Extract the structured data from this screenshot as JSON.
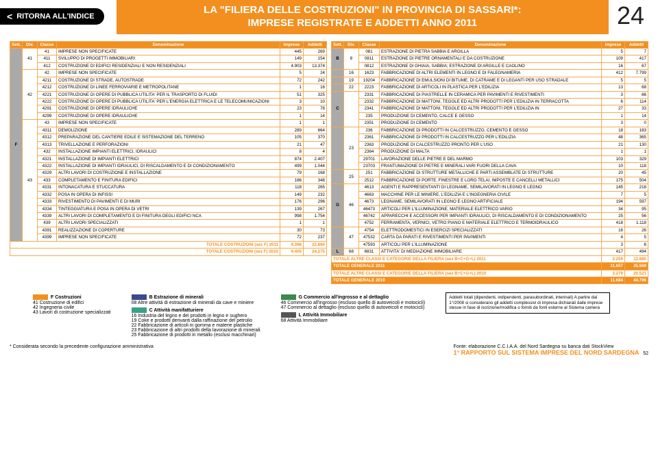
{
  "colors": {
    "accent": "#f38f1e",
    "accent_light": "#f5a94e",
    "black": "#000000",
    "gray": "#aaaaaa",
    "text": "#222222",
    "swatch_blue": "#3a4a8a",
    "swatch_teal": "#3aa08a",
    "swatch_green": "#3a8a4a"
  },
  "header": {
    "back_label": "RITORNA ALL'INDICE",
    "title_line1": "LA \"FILIERA DELLE COSTRUZIONI\" IN PROVINCIA DI SASSARI*:",
    "title_line2": "IMPRESE REGISTRATE E ADDETTI ANNO 2011",
    "page_number": "24"
  },
  "table_headers": {
    "sett": "Sett.",
    "div": "Div.",
    "classe": "Classe",
    "denom": "Denominazione",
    "imprese": "Imprese",
    "addetti": "Addetti"
  },
  "left_table": {
    "sett": "F",
    "groups": [
      {
        "div": "41",
        "rows": [
          {
            "classe": "41",
            "denom": "IMPRESE NON SPECIFICATE",
            "imp": "445",
            "add": "269"
          },
          {
            "classe": "411",
            "denom": "SVILUPPO DI PROGETTI IMMOBILIARI",
            "imp": "149",
            "add": "154"
          },
          {
            "classe": "412",
            "denom": "COSTRUZIONE DI EDIFICI RESIDENZIALI E NON RESIDENZIALI",
            "imp": "4.903",
            "add": "13.374"
          }
        ]
      },
      {
        "div": "42",
        "rows": [
          {
            "classe": "42",
            "denom": "IMPRESE NON SPECIFICATE",
            "imp": "5",
            "add": "24"
          },
          {
            "classe": "4211",
            "denom": "COSTRUZIONE DI STRADE, AUTOSTRADE",
            "imp": "72",
            "add": "242"
          },
          {
            "classe": "4212",
            "denom": "COSTRUZIONE DI LINEE FERROVIARIE E METROPOLITANE",
            "imp": "1",
            "add": "16"
          },
          {
            "classe": "4221",
            "denom": "COSTRUZIONE DI OPERE DI PUBBLICA UTILITA' PER IL TRASPORTO DI FLUIDI",
            "imp": "51",
            "add": "325"
          },
          {
            "classe": "4222",
            "denom": "COSTRUZIONE DI OPERE DI PUBBLICA UTILITA' PER L'ENERGIA ELETTRICA E LE TELECOMUNICAZIONI",
            "imp": "3",
            "add": "10"
          },
          {
            "classe": "4291",
            "denom": "COSTRUZIONE DI OPERE IDRAULICHE",
            "imp": "23",
            "add": "78"
          },
          {
            "classe": "4299",
            "denom": "COSTRUZIONE DI OPERE IDRAULICHE",
            "imp": "1",
            "add": "14"
          }
        ]
      },
      {
        "div": "43",
        "rows": [
          {
            "classe": "43",
            "denom": "IMPRESE NON SPECIFICATE",
            "imp": "1",
            "add": "1"
          },
          {
            "classe": "4311",
            "denom": "DEMOLIZIONE",
            "imp": "289",
            "add": "664"
          },
          {
            "classe": "4312",
            "denom": "PREPARAZIONE DEL CANTIERE EDILE E SISTEMAZIONE DEL TERRENO",
            "imp": "105",
            "add": "370"
          },
          {
            "classe": "4313",
            "denom": "TRIVELLAZIONE E PERFORAZIONI",
            "imp": "21",
            "add": "47"
          },
          {
            "classe": "432",
            "denom": "INSTALLAZIONE IMPIANTI ELETTRICI, IDRAULICI",
            "imp": "8",
            "add": "4"
          },
          {
            "classe": "4321",
            "denom": "INSTALLAZIONE DI IMPIANTI ELETTRICI",
            "imp": "874",
            "add": "2.407"
          },
          {
            "classe": "4322",
            "denom": "INSTALLAZIONE DI IMPIANTI IDRAULICI, DI RISCALDAMENTO E DI CONDIZIONAMENTO",
            "imp": "499",
            "add": "1.044"
          },
          {
            "classe": "4329",
            "denom": "ALTRI LAVORI DI COSTRUZIONE E INSTALLAZIONE",
            "imp": "79",
            "add": "168"
          },
          {
            "classe": "433",
            "denom": "COMPLETAMENTO E FINITURA EDIFICI",
            "imp": "186",
            "add": "348"
          },
          {
            "classe": "4331",
            "denom": "INTONACATURA E STUCCATURA",
            "imp": "118",
            "add": "265"
          },
          {
            "classe": "4332",
            "denom": "POSA IN OPERA DI INFISSI",
            "imp": "149",
            "add": "232"
          },
          {
            "classe": "4333",
            "denom": "RIVESTIMENTO DI PAVIMENTI E DI MURI",
            "imp": "176",
            "add": "296"
          },
          {
            "classe": "4334",
            "denom": "TINTEGGIATURA E POSA IN OPERA DI VETRI",
            "imp": "139",
            "add": "267"
          },
          {
            "classe": "4339",
            "denom": "ALTRI LAVORI DI COMPLETAMENTO E DI FINITURA DEGLI EDIFICI NCA",
            "imp": "998",
            "add": "1.754"
          },
          {
            "classe": "439",
            "denom": "ALTRI LAVORI SPECIALIZZATI",
            "imp": "1",
            "add": "1"
          },
          {
            "classe": "4391",
            "denom": "REALIZZAZIONE DI COPERTURE",
            "imp": "30",
            "add": "73"
          },
          {
            "classe": "4399",
            "denom": "IMPRESE NON SPECIFICATE",
            "imp": "72",
            "add": "237"
          }
        ]
      }
    ],
    "totals": [
      {
        "label": "TOTALE COSTRUZIONI (sez F) 2011",
        "imp": "9.398",
        "add": "22.684"
      },
      {
        "label": "TOTALE COSTRUZIONI (sez F) 2010",
        "imp": "9.405",
        "add": "24.275"
      }
    ]
  },
  "right_table": {
    "groups": [
      {
        "sett": "B",
        "div": "8",
        "rows": [
          {
            "classe": "081",
            "denom": "ESTRAZIONE DI PIETRA SABBIA E ARGILLA",
            "imp": "5",
            "add": "7"
          },
          {
            "classe": "0811",
            "denom": "ESTRAZIONE DI PIETRE ORNAMENTALI E DA COSTRUZIONE",
            "imp": "109",
            "add": "417"
          },
          {
            "classe": "0812",
            "denom": "ESTRAZIONE DI GHIAIA, SABBIA; ESTRAZIONE DI ARGILLE E CAOLINO",
            "imp": "16",
            "add": "67"
          }
        ]
      },
      {
        "sett": "",
        "div": "16",
        "rows": [
          {
            "classe": "1623",
            "denom": "FABBRICAZIONE DI ALTRI ELEMENTI IN LEGNO E DI FALEGNAMERIA",
            "imp": "412",
            "add": "7.799"
          }
        ]
      },
      {
        "sett": "",
        "div": "19",
        "rows": [
          {
            "classe": "19204",
            "denom": "FABBRICAZIONE DI EMULSIONI DI BITUME, DI CATRAME E DI LEGANTI PER USO STRADALE",
            "imp": "5",
            "add": "5"
          }
        ]
      },
      {
        "sett": "",
        "div": "22",
        "rows": [
          {
            "classe": "2223",
            "denom": "FABBRICAZIONE DI ARTICOLI IN PLASTICA PER L'EDILIZIA",
            "imp": "13",
            "add": "68"
          }
        ]
      },
      {
        "sett": "C",
        "div": "",
        "rows": [
          {
            "classe": "2331",
            "denom": "FABBRICAZIONE DI PIASTRELLE IN CERAMICA PER PAVIMENTI E RIVESTIMENTI",
            "imp": "3",
            "add": "66"
          },
          {
            "classe": "2332",
            "denom": "FABBRICAZIONE DI MATTONI, TEGOLE ED ALTRI PRODOTTI PER L'EDILIZIA IN TERRACOTTA",
            "imp": "6",
            "add": "114"
          },
          {
            "classe": "2341",
            "denom": "FABBRICAZIONE DI MATTONI, TEGOLE ED ALTRI PRODOTTI PER L'EDILIZIA IN",
            "imp": "27",
            "add": "33"
          },
          {
            "classe": "235",
            "denom": "PRODUZIONE DI CEMENTO, CALCE E GESSO",
            "imp": "1",
            "add": "14"
          },
          {
            "classe": "2351",
            "denom": "PRODUZIONE DI CEMENTO",
            "imp": "3",
            "add": "0"
          }
        ]
      },
      {
        "sett": "",
        "div": "23",
        "rows": [
          {
            "classe": "236",
            "denom": "FABBRICAZIONE DI PRODOTTI IN CALCESTRUZZO, CEMENTO E GESSO",
            "imp": "18",
            "add": "183"
          },
          {
            "classe": "2361",
            "denom": "FABBRICAZIONE DI PRODOTTI IN CALCESTRUZZO PER L'EDILIZIA",
            "imp": "48",
            "add": "365"
          },
          {
            "classe": "2363",
            "denom": "PRODUZIONE DI CALCESTRUZZO PRONTO PER L'USO",
            "imp": "21",
            "add": "130"
          },
          {
            "classe": "2364",
            "denom": "PRODUZIONE DI MALTA",
            "imp": "1",
            "add": "1"
          },
          {
            "classe": "29701",
            "denom": "LAVORAZIONE DELLE PIETRE E DEL MARMO",
            "imp": "103",
            "add": "329"
          },
          {
            "classe": "23703",
            "denom": "FRANTUMAZIONE DI PIETRE E MINERALI VARI FUORI DELLA CAVA",
            "imp": "10",
            "add": "118"
          }
        ]
      },
      {
        "sett": "",
        "div": "25",
        "rows": [
          {
            "classe": "251",
            "denom": "FABBRICAZIONE DI STRUTTURE METALLICHE E PARTI ASSEMBLATE DI STRUTTURE",
            "imp": "20",
            "add": "45"
          },
          {
            "classe": "2512",
            "denom": "FABBRICAZIONE DI PORTE, FINESTRE E LORO TELAI, IMPOSTE E CANCELLI METALLICI",
            "imp": "175",
            "add": "504"
          }
        ]
      },
      {
        "sett": "G",
        "div": "46",
        "rows": [
          {
            "classe": "4613",
            "denom": "AGENTI E RAPPRESENTANTI DI LEGNAME, SEMILAVORATI IN LEGNO E LEGNO",
            "imp": "145",
            "add": "218"
          },
          {
            "classe": "4663",
            "denom": "MACCHINE PER LE MINIERE, L'EDILIZIA E L'INGEGNERIA CIVILE",
            "imp": "7",
            "add": "5"
          },
          {
            "classe": "4673",
            "denom": "LEGNAME, SEMILAVORATI IN LEGNO E LEGNO ARTIFICIALE",
            "imp": "194",
            "add": "597"
          },
          {
            "classe": "46473",
            "denom": "ARTICOLI PER L'ILLUMINAZIONE; MATERIALE ELETTRICO VARIO",
            "imp": "34",
            "add": "95"
          },
          {
            "classe": "46742",
            "denom": "APPARECCHI E ACCESSORI PER IMPIANTI IDRAULICI, DI RISCALDAMENTO E DI CONDIZIONAMENTO",
            "imp": "25",
            "add": "56"
          },
          {
            "classe": "4752",
            "denom": "FERRAMENTA, VERNICI, VETRO PIANO E MATERIALE ELETTRICO E TERMOIDRAULICO",
            "imp": "418",
            "add": "1.118"
          }
        ]
      },
      {
        "sett": "",
        "div": "47",
        "rows": [
          {
            "classe": "4754",
            "denom": "ELETTRODOMESTICI IN ESERCIZI SPECIALIZZATI",
            "imp": "16",
            "add": "26"
          },
          {
            "classe": "47532",
            "denom": "CARTA DA PARATI E RIVESTIMENTI PER PAVIMENTI",
            "imp": "4",
            "add": "5"
          },
          {
            "classe": "47593",
            "denom": "ARTICOLI PER L'ILLUMINAZIONE",
            "imp": "3",
            "add": "6"
          }
        ]
      },
      {
        "sett": "L",
        "div": "68",
        "rows": [
          {
            "classe": "6831",
            "denom": "ATTIVITA' DI MEDIAZIONE IMMOBILIARE",
            "imp": "417",
            "add": "494"
          }
        ]
      }
    ],
    "totals": [
      {
        "label": "TOTALE ALTRE CLASSI E CATEGORIE DELLA FILIERA (sez B+C+G+L) 2011",
        "imp": "2.259",
        "add": "12.885",
        "cls": "total"
      },
      {
        "label": "TOTALE GENERALE 2011",
        "imp": "11.657",
        "add": "35.569",
        "cls": "grand"
      },
      {
        "label": "TOTALE ALTRE CLASSI E CATEGORIE DELLA FILIERA (sez B+C+G+L) 2010",
        "imp": "2.279",
        "add": "20.521",
        "cls": "total"
      },
      {
        "label": "TOTALE GENERALE 2010",
        "imp": "11.684",
        "add": "44.796",
        "cls": "grand"
      }
    ]
  },
  "legend": {
    "col1": {
      "swatch": "#f38f1e",
      "heading": "F Costruzioni",
      "items": [
        "41 Costruzione di edifici",
        "42 Ingegneria civile",
        "43 Lavori di costruzione specializzati"
      ]
    },
    "col2": {
      "swatch": "#3a4a8a",
      "heading": "B Estrazione di minerali",
      "sub": "08 Altre attività di estrazione di minerali da cave e miniere",
      "swatch2": "#3aa08a",
      "heading2": "C Attività manifatturiere",
      "items": [
        "16 Industria del legno e dei prodotti in legno e sughero",
        "19 Coke e prodotti derivanti dalla raffinazione del petrolio",
        "22 Fabbricazione di articoli in gomma e materie plastiche",
        "23 Fabbricazione di altri prodotti della lavorazione di minerali",
        "25 Fabbricazione di prodotti in metallo (esclusi macchinari)"
      ]
    },
    "col3": {
      "swatch": "#3a8a4a",
      "heading": "G Commercio all'ingrosso e al dettaglio",
      "items": [
        "46 Commercio all'ingrosso (escluso quello di autoveicoli e motocicli)",
        "47 Commercio al dettaglio (escluso quello di autoveicoli e motocicli)"
      ],
      "swatch2": "#555555",
      "heading2": "L Attività Immobiliare",
      "items2": [
        "68 Attività Immobiliare"
      ]
    },
    "notes": "Addetti totali (dipendenti, indipendenti, parasubordinati, interinali)\nA partire dal 1°/2008 si considerano gli addetti complessivi di impresa dichiarati dalle imprese stesse in fase di iscrizione/modifica o forniti da fonti esterne al Sistema camera"
  },
  "footer": {
    "note": "* Considerata secondo la precedente configurazione amministrativa",
    "source": "Fonte: elaborazione C.C.I.A.A. del Nord Sardegna su banca dati StockView",
    "rapporto": "1° RAPPORTO SUL SISTEMA IMPRESE DEL NORD SARDEGNA",
    "page": "52"
  }
}
